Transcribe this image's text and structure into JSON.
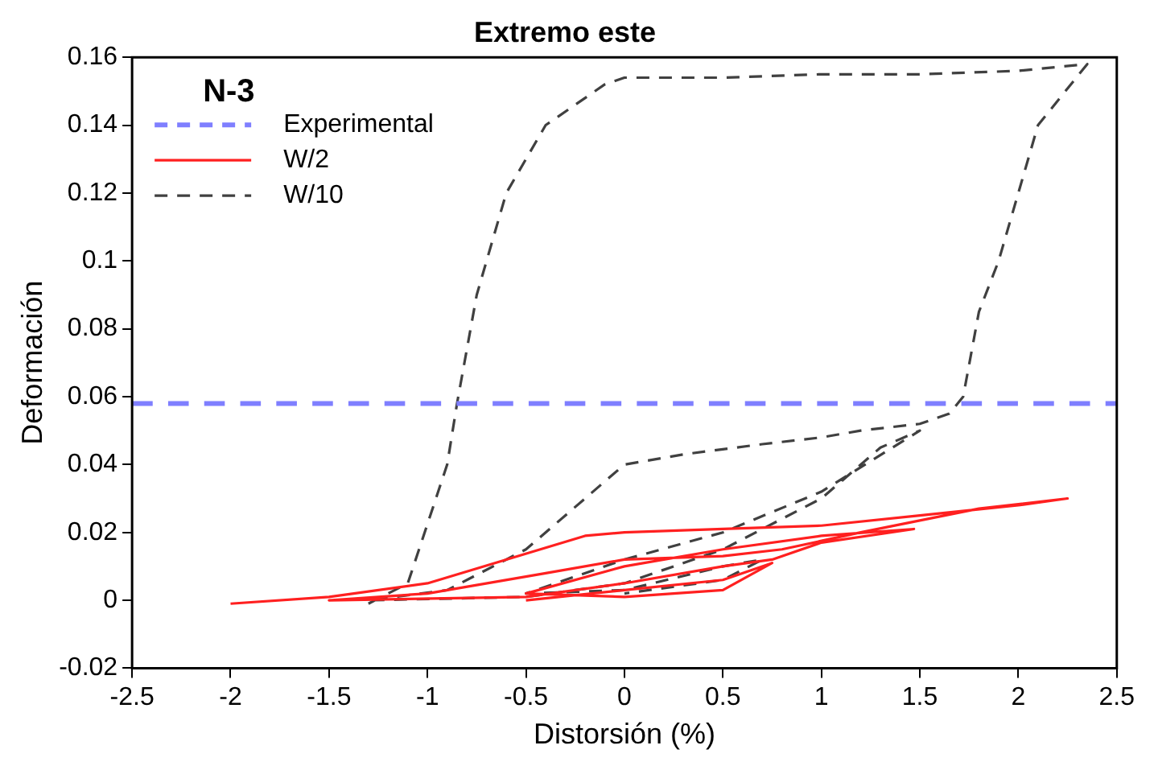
{
  "chart_data": {
    "type": "line",
    "title": "Extremo este",
    "xlabel": "Distorsión (%)",
    "ylabel": "Deformación",
    "legend_title": "N-3",
    "series": [
      {
        "name": "W/2",
        "color": "#ff2020",
        "line_style": "solid",
        "x": [
          -2,
          -1.5,
          -1,
          -0.6,
          -0.2,
          0,
          0.5,
          1,
          1.5,
          2,
          2.25,
          1.8,
          1.2,
          0.8,
          0.5,
          0,
          -0.4,
          -1,
          -1.5,
          -0.5,
          0,
          0.5,
          0.75,
          1,
          1.47,
          1,
          0.5,
          0,
          -0.5,
          0,
          0.5,
          0.75,
          0.5,
          0,
          -0.5
        ],
        "values": [
          -0.001,
          0.001,
          0.005,
          0.012,
          0.019,
          0.02,
          0.021,
          0.022,
          0.025,
          0.028,
          0.03,
          0.027,
          0.02,
          0.015,
          0.013,
          0.012,
          0.008,
          0.002,
          0,
          0.001,
          0.005,
          0.01,
          0.012,
          0.017,
          0.021,
          0.019,
          0.015,
          0.01,
          0.002,
          0.001,
          0.003,
          0.011,
          0.006,
          0.003,
          0
        ]
      },
      {
        "name": "W/10",
        "color": "#404040",
        "line_style": "dashed",
        "x": [
          -1.3,
          -1.1,
          -0.9,
          -0.85,
          -0.75,
          -0.6,
          -0.4,
          -0.1,
          0,
          0.5,
          1,
          1.5,
          2,
          2.35,
          2.1,
          1.9,
          1.8,
          1.72,
          1.65,
          1.5,
          1.2,
          1,
          0.7,
          0.3,
          0,
          -0.2,
          -0.5,
          -0.9,
          -1.3,
          -0.5,
          0,
          0.5,
          1,
          1.3,
          1.5,
          1,
          0.5,
          0,
          -0.5,
          0,
          0.5,
          0.7,
          0.5,
          0
        ],
        "values": [
          -0.001,
          0.005,
          0.04,
          0.058,
          0.09,
          0.12,
          0.14,
          0.152,
          0.154,
          0.154,
          0.155,
          0.155,
          0.156,
          0.158,
          0.14,
          0.1,
          0.085,
          0.06,
          0.055,
          0.052,
          0.05,
          0.048,
          0.046,
          0.043,
          0.04,
          0.03,
          0.015,
          0.003,
          0,
          0.001,
          0.005,
          0.015,
          0.03,
          0.045,
          0.05,
          0.032,
          0.02,
          0.012,
          0.002,
          0.003,
          0.01,
          0.012,
          0.006,
          0.002
        ]
      }
    ],
    "ref_lines": [
      {
        "axis": "y",
        "value": 0.058,
        "label": "Experimental",
        "color": "#7f7fff",
        "line_style": "dashed"
      }
    ],
    "xlim": [
      -2.5,
      2.5
    ],
    "xticks": [
      -2.5,
      -2,
      -1.5,
      -1,
      -0.5,
      0,
      0.5,
      1,
      1.5,
      2,
      2.5
    ],
    "ylim": [
      -0.02,
      0.16
    ],
    "yticks": [
      -0.02,
      0,
      0.02,
      0.04,
      0.06,
      0.08,
      0.1,
      0.12,
      0.14,
      0.16
    ],
    "grid": false,
    "legend": "top left",
    "marker": "none"
  }
}
